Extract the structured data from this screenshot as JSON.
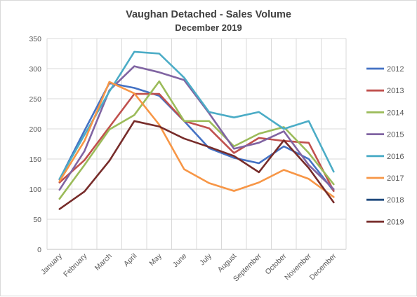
{
  "chart_data": {
    "type": "line",
    "title": "Vaughan Detached - Sales Volume",
    "subtitle": "December 2019",
    "xlabel": "",
    "ylabel": "",
    "ylim": [
      0,
      350
    ],
    "yticks": [
      "0",
      "50",
      "100",
      "150",
      "200",
      "250",
      "300",
      "350"
    ],
    "grid": "horizontal",
    "legend_position": "right",
    "categories": [
      "January",
      "February",
      "March",
      "April",
      "May",
      "June",
      "July",
      "August",
      "September",
      "October",
      "November",
      "December"
    ],
    "series": [
      {
        "name": "2012",
        "color": "#4472c4",
        "values": [
          116,
          197,
          276,
          268,
          255,
          213,
          168,
          152,
          143,
          171,
          150,
          97
        ]
      },
      {
        "name": "2013",
        "color": "#c0504d",
        "values": [
          111,
          148,
          203,
          258,
          258,
          213,
          201,
          160,
          185,
          180,
          177,
          97
        ]
      },
      {
        "name": "2014",
        "color": "#9bbb59",
        "values": [
          84,
          140,
          199,
          223,
          279,
          213,
          213,
          171,
          192,
          203,
          160,
          108
        ]
      },
      {
        "name": "2015",
        "color": "#8064a2",
        "values": [
          99,
          163,
          264,
          304,
          294,
          281,
          226,
          167,
          177,
          196,
          140,
          100
        ]
      },
      {
        "name": "2016",
        "color": "#4bacc6",
        "values": [
          117,
          190,
          262,
          328,
          325,
          285,
          228,
          219,
          228,
          200,
          213,
          129
        ]
      },
      {
        "name": "2017",
        "color": "#f79646",
        "values": [
          113,
          180,
          278,
          259,
          207,
          133,
          110,
          97,
          111,
          132,
          117,
          87
        ]
      },
      {
        "name": "2018",
        "color": "#1f497d",
        "values": [
          null,
          null,
          null,
          null,
          null,
          null,
          null,
          null,
          null,
          null,
          null,
          null
        ]
      },
      {
        "name": "2019",
        "color": "#772c2a",
        "values": [
          67,
          96,
          147,
          213,
          204,
          184,
          170,
          155,
          128,
          181,
          135,
          78
        ]
      }
    ]
  }
}
